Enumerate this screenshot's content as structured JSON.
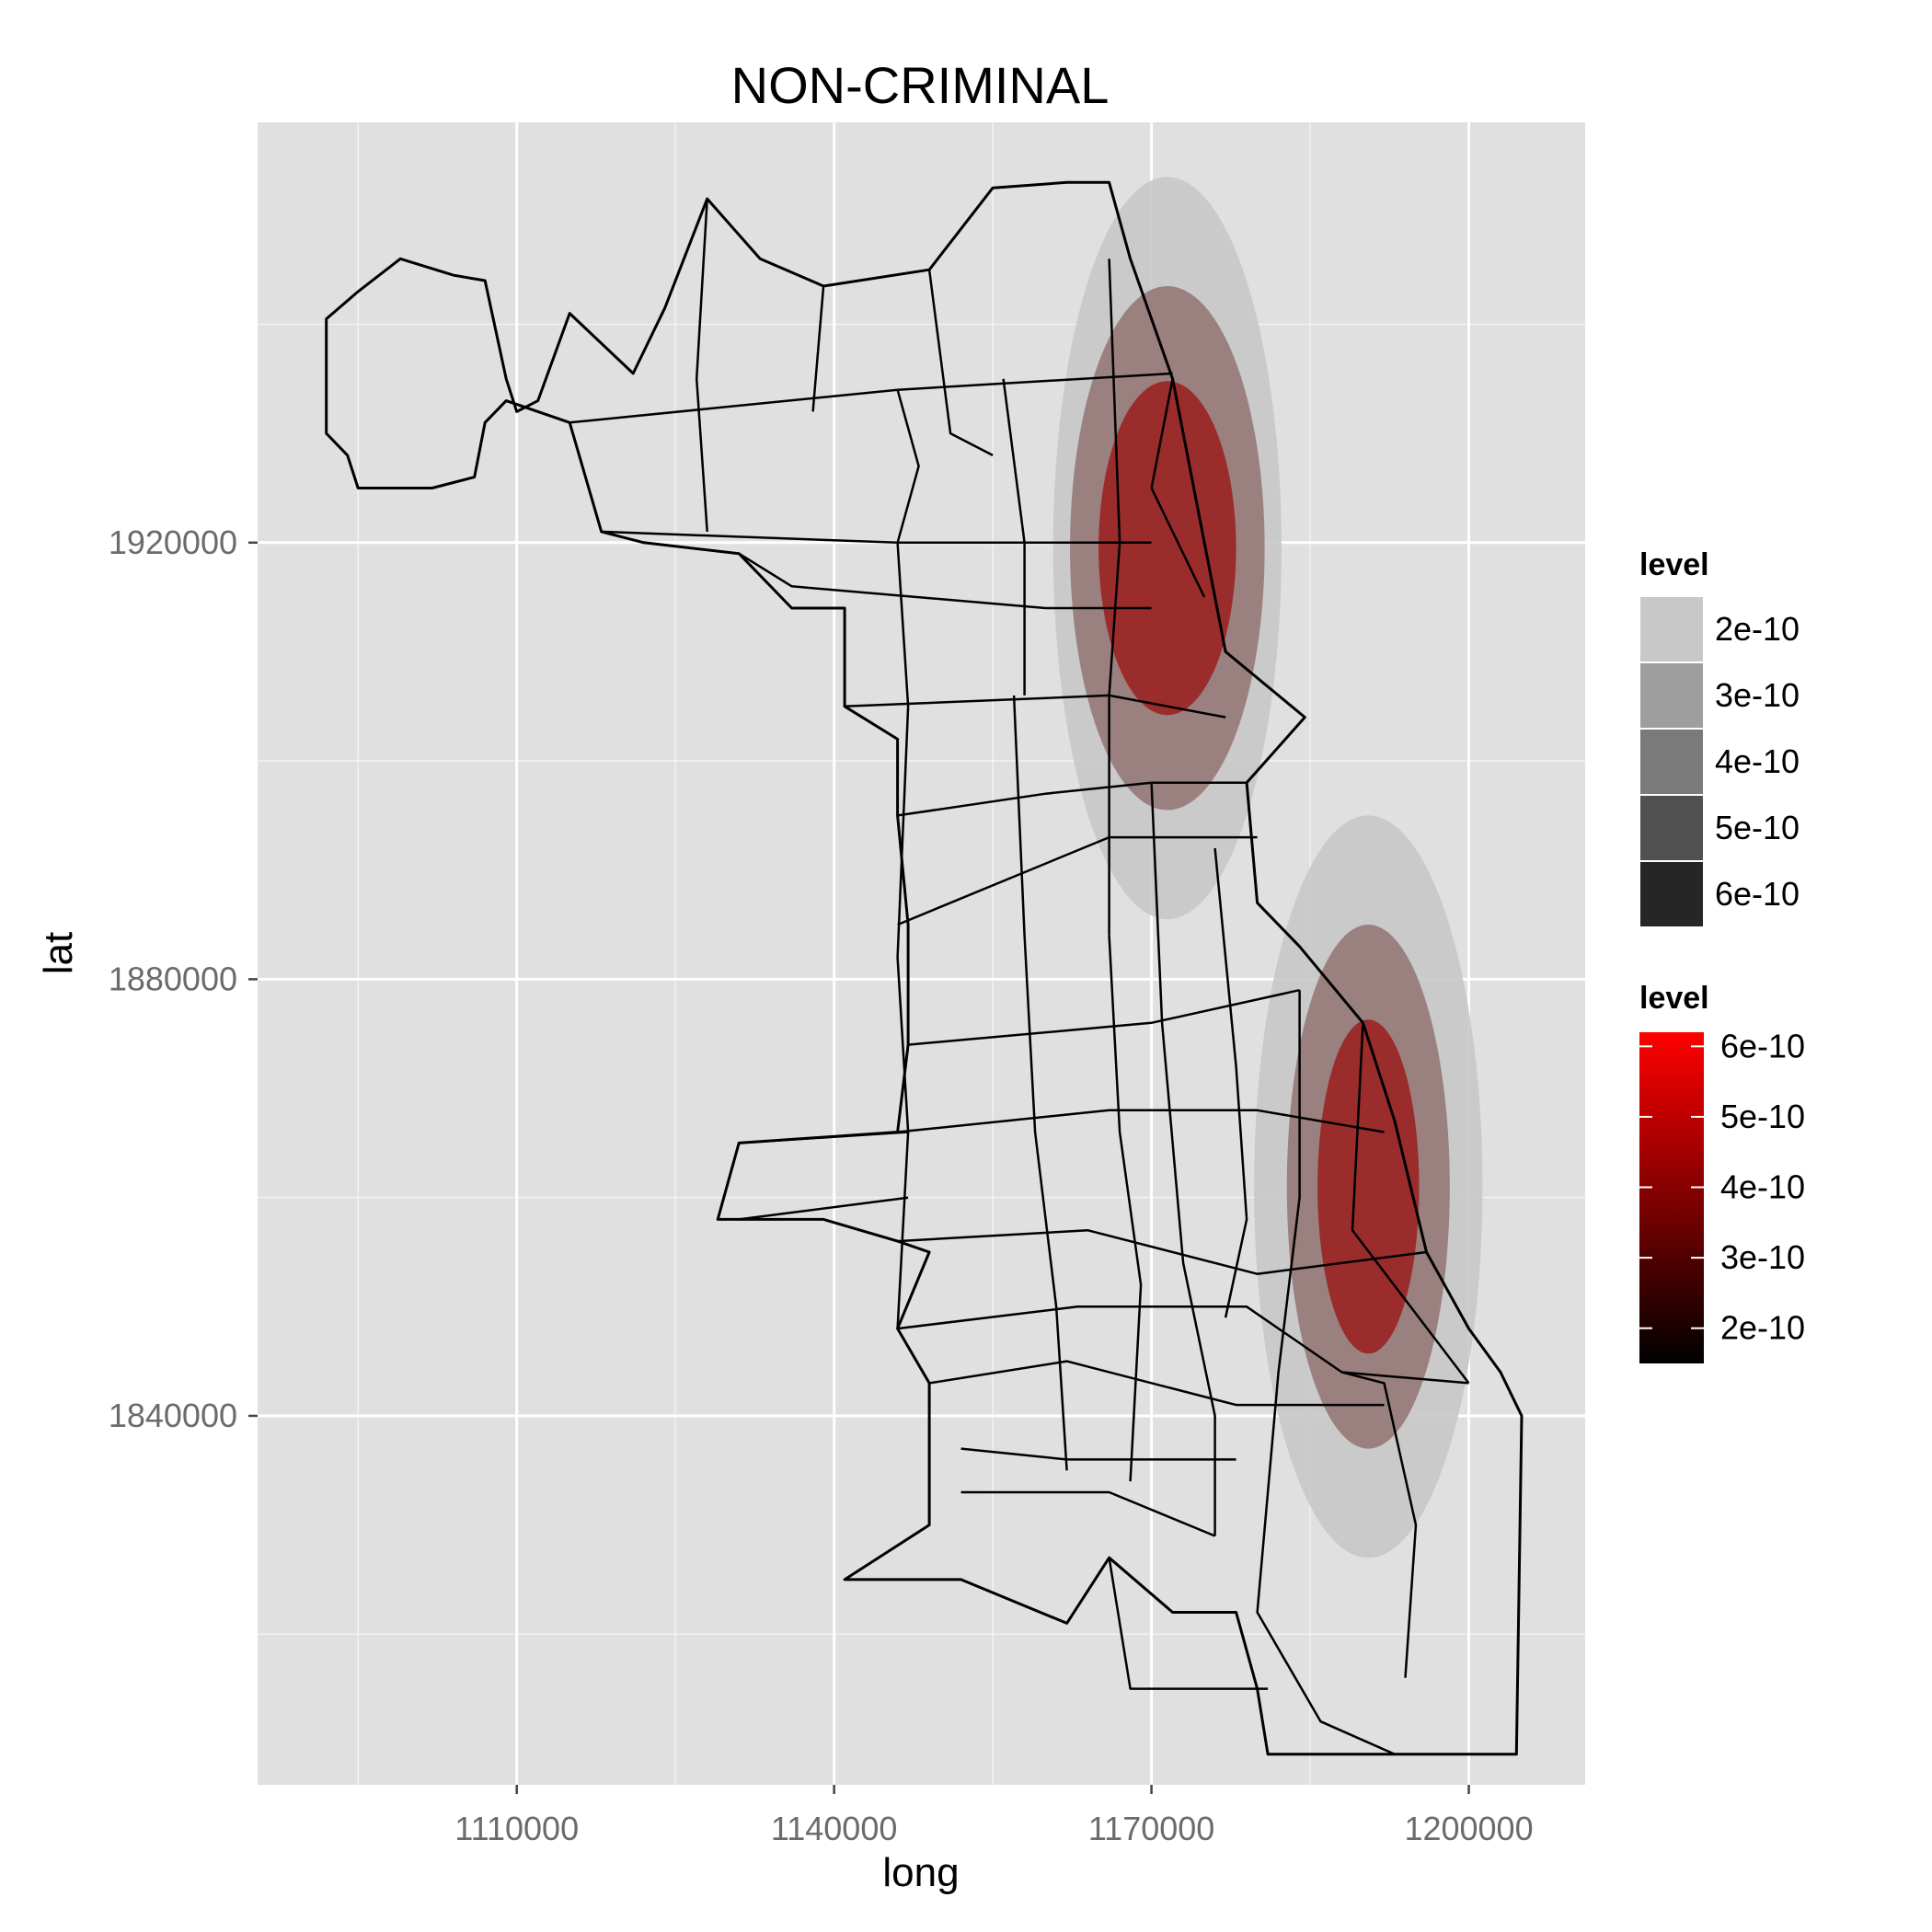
{
  "chart_data": {
    "type": "heatmap",
    "title": "NON-CRIMINAL",
    "xlabel": "long",
    "ylabel": "lat",
    "x_ticks": [
      1110000,
      1140000,
      1170000,
      1200000
    ],
    "y_ticks": [
      1840000,
      1880000,
      1920000
    ],
    "x_tick_labels": [
      "1110000",
      "1140000",
      "1170000",
      "1200000"
    ],
    "y_tick_labels": [
      "1840000",
      "1880000",
      "1920000"
    ],
    "xlim": [
      1085500,
      1211000
    ],
    "ylim": [
      1806200,
      1958500
    ],
    "grid": true,
    "panel_background": "#E0E0E0",
    "grid_color": "#FFFFFF",
    "legend_placement": "right",
    "legends": [
      {
        "title": "level",
        "kind": "fill",
        "entries": [
          {
            "label": "2e-10",
            "color": "#C8C8C8"
          },
          {
            "label": "3e-10",
            "color": "#9E9E9E"
          },
          {
            "label": "4e-10",
            "color": "#7A7A7A"
          },
          {
            "label": "5e-10",
            "color": "#505050"
          },
          {
            "label": "6e-10",
            "color": "#262626"
          }
        ]
      },
      {
        "title": "level",
        "kind": "colour",
        "gradient": [
          "#000000",
          "#FF0000"
        ],
        "range": [
          1.5e-10,
          6.2e-10
        ],
        "entries": [
          {
            "label": "2e-10",
            "value": 2e-10
          },
          {
            "label": "3e-10",
            "value": 3e-10
          },
          {
            "label": "4e-10",
            "value": 4e-10
          },
          {
            "label": "5e-10",
            "value": 5e-10
          },
          {
            "label": "6e-10",
            "value": 6e-10
          }
        ]
      }
    ],
    "density_hotspots": [
      {
        "center": [
          1171500,
          1919500
        ],
        "contours": [
          {
            "level": 2e-10,
            "rx": 10800,
            "ry": 34000,
            "fill": "#C8C8C8",
            "opacity": 0.9
          },
          {
            "level": 3e-10,
            "rx": 9200,
            "ry": 24000,
            "fill": "#967878",
            "opacity": 0.9
          },
          {
            "level": 4e-10,
            "rx": 6500,
            "ry": 15300,
            "fill": "#9A2222",
            "opacity": 0.9
          }
        ]
      },
      {
        "center": [
          1190500,
          1861000
        ],
        "contours": [
          {
            "level": 2e-10,
            "rx": 10800,
            "ry": 34000,
            "fill": "#C8C8C8",
            "opacity": 0.9
          },
          {
            "level": 3e-10,
            "rx": 7700,
            "ry": 24000,
            "fill": "#967878",
            "opacity": 0.9
          },
          {
            "level": 4e-10,
            "rx": 4800,
            "ry": 15300,
            "fill": "#9A2222",
            "opacity": 0.9
          }
        ]
      }
    ],
    "boundary_outline": [
      [
        1092000,
        1940500
      ],
      [
        1095000,
        1943000
      ],
      [
        1099000,
        1946000
      ],
      [
        1104000,
        1944500
      ],
      [
        1107000,
        1944000
      ],
      [
        1109000,
        1935000
      ],
      [
        1110000,
        1932000
      ],
      [
        1112000,
        1933000
      ],
      [
        1115000,
        1941000
      ],
      [
        1121000,
        1935500
      ],
      [
        1124000,
        1941500
      ],
      [
        1128000,
        1951500
      ],
      [
        1133000,
        1946000
      ],
      [
        1139000,
        1943500
      ],
      [
        1149000,
        1945000
      ],
      [
        1155000,
        1952500
      ],
      [
        1162000,
        1953000
      ],
      [
        1166000,
        1953000
      ],
      [
        1168000,
        1946000
      ],
      [
        1172000,
        1935000
      ],
      [
        1177000,
        1910000
      ],
      [
        1184500,
        1904000
      ],
      [
        1179000,
        1898000
      ],
      [
        1180000,
        1887000
      ],
      [
        1184000,
        1883000
      ],
      [
        1190000,
        1876000
      ],
      [
        1193000,
        1867000
      ],
      [
        1196000,
        1855000
      ],
      [
        1200000,
        1848000
      ],
      [
        1203000,
        1844000
      ],
      [
        1205000,
        1840000
      ],
      [
        1204500,
        1809000
      ],
      [
        1181000,
        1809000
      ],
      [
        1180000,
        1815000
      ],
      [
        1178000,
        1822000
      ],
      [
        1172000,
        1822000
      ],
      [
        1166000,
        1827000
      ],
      [
        1162000,
        1821000
      ],
      [
        1152000,
        1825000
      ],
      [
        1141000,
        1825000
      ],
      [
        1149000,
        1830000
      ],
      [
        1149000,
        1843000
      ],
      [
        1146000,
        1848000
      ],
      [
        1149000,
        1855000
      ],
      [
        1146000,
        1856000
      ],
      [
        1139000,
        1858000
      ],
      [
        1129000,
        1858000
      ],
      [
        1131000,
        1865000
      ],
      [
        1146000,
        1866000
      ],
      [
        1147000,
        1874000
      ],
      [
        1147000,
        1885000
      ],
      [
        1146000,
        1895000
      ],
      [
        1146000,
        1902000
      ],
      [
        1141000,
        1905000
      ],
      [
        1141000,
        1914000
      ],
      [
        1136000,
        1914000
      ],
      [
        1131000,
        1919000
      ],
      [
        1122000,
        1920000
      ],
      [
        1118000,
        1921000
      ],
      [
        1115000,
        1931000
      ],
      [
        1109000,
        1933000
      ],
      [
        1107000,
        1931000
      ],
      [
        1106000,
        1926000
      ],
      [
        1102000,
        1925000
      ],
      [
        1095000,
        1925000
      ],
      [
        1094000,
        1928000
      ],
      [
        1092000,
        1930000
      ],
      [
        1092000,
        1940500
      ]
    ],
    "interior_lines": [
      [
        [
          1115000,
          1931000
        ],
        [
          1146000,
          1934000
        ],
        [
          1172000,
          1935500
        ]
      ],
      [
        [
          1118000,
          1921000
        ],
        [
          1146000,
          1920000
        ],
        [
          1170000,
          1920000
        ]
      ],
      [
        [
          1131000,
          1919000
        ],
        [
          1136000,
          1916000
        ],
        [
          1160000,
          1914000
        ],
        [
          1170000,
          1914000
        ]
      ],
      [
        [
          1141000,
          1905000
        ],
        [
          1166000,
          1906000
        ],
        [
          1177000,
          1904000
        ]
      ],
      [
        [
          1146000,
          1895000
        ],
        [
          1160000,
          1897000
        ],
        [
          1170000,
          1898000
        ],
        [
          1179000,
          1898000
        ]
      ],
      [
        [
          1146000,
          1885000
        ],
        [
          1166000,
          1893000
        ],
        [
          1180000,
          1893000
        ]
      ],
      [
        [
          1147000,
          1874000
        ],
        [
          1170000,
          1876000
        ],
        [
          1184000,
          1879000
        ]
      ],
      [
        [
          1146000,
          1866000
        ],
        [
          1166000,
          1868000
        ],
        [
          1180000,
          1868000
        ],
        [
          1192000,
          1866000
        ]
      ],
      [
        [
          1131000,
          1865000
        ],
        [
          1147000,
          1866000
        ]
      ],
      [
        [
          1146000,
          1856000
        ],
        [
          1164000,
          1857000
        ],
        [
          1180000,
          1853000
        ],
        [
          1196000,
          1855000
        ]
      ],
      [
        [
          1146000,
          1848000
        ],
        [
          1163000,
          1850000
        ],
        [
          1179000,
          1850000
        ],
        [
          1188000,
          1844000
        ],
        [
          1200000,
          1843000
        ]
      ],
      [
        [
          1149000,
          1843000
        ],
        [
          1162000,
          1845000
        ],
        [
          1178000,
          1841000
        ],
        [
          1192000,
          1841000
        ]
      ],
      [
        [
          1152000,
          1837000
        ],
        [
          1162000,
          1836000
        ],
        [
          1178000,
          1836000
        ]
      ],
      [
        [
          1152000,
          1833000
        ],
        [
          1166000,
          1833000
        ],
        [
          1176000,
          1829000
        ]
      ],
      [
        [
          1146000,
          1934000
        ],
        [
          1148000,
          1927000
        ],
        [
          1146000,
          1920000
        ]
      ],
      [
        [
          1156000,
          1935000
        ],
        [
          1158000,
          1920000
        ],
        [
          1158000,
          1906000
        ]
      ],
      [
        [
          1166000,
          1946000
        ],
        [
          1167000,
          1920000
        ],
        [
          1166000,
          1906000
        ],
        [
          1166000,
          1884000
        ]
      ],
      [
        [
          1146000,
          1920000
        ],
        [
          1147000,
          1905000
        ],
        [
          1146000,
          1882000
        ],
        [
          1147000,
          1866000
        ],
        [
          1146000,
          1848000
        ]
      ],
      [
        [
          1157000,
          1906000
        ],
        [
          1158000,
          1884000
        ],
        [
          1159000,
          1866000
        ],
        [
          1161000,
          1850000
        ],
        [
          1162000,
          1835000
        ]
      ],
      [
        [
          1166000,
          1884000
        ],
        [
          1167000,
          1866000
        ],
        [
          1169000,
          1852000
        ],
        [
          1168000,
          1834000
        ]
      ],
      [
        [
          1170000,
          1898000
        ],
        [
          1171000,
          1876000
        ],
        [
          1173000,
          1854000
        ],
        [
          1176000,
          1840000
        ],
        [
          1176000,
          1829000
        ]
      ],
      [
        [
          1176000,
          1892000
        ],
        [
          1178000,
          1872000
        ],
        [
          1179000,
          1858000
        ],
        [
          1177000,
          1849000
        ]
      ],
      [
        [
          1184000,
          1879000
        ],
        [
          1184000,
          1860000
        ],
        [
          1182000,
          1844000
        ],
        [
          1180000,
          1822000
        ],
        [
          1186000,
          1812000
        ],
        [
          1193000,
          1809000
        ]
      ],
      [
        [
          1188000,
          1844000
        ],
        [
          1192000,
          1843000
        ],
        [
          1195000,
          1830000
        ],
        [
          1194000,
          1816000
        ]
      ],
      [
        [
          1190000,
          1876000
        ],
        [
          1189000,
          1857000
        ],
        [
          1200000,
          1843000
        ]
      ],
      [
        [
          1131000,
          1858000
        ],
        [
          1147000,
          1860000
        ]
      ],
      [
        [
          1166000,
          1827000
        ],
        [
          1168000,
          1815000
        ],
        [
          1181000,
          1815000
        ]
      ],
      [
        [
          1128000,
          1951500
        ],
        [
          1127000,
          1935000
        ],
        [
          1128000,
          1921000
        ]
      ],
      [
        [
          1139000,
          1943500
        ],
        [
          1138000,
          1932000
        ]
      ],
      [
        [
          1149000,
          1945000
        ],
        [
          1151000,
          1930000
        ],
        [
          1155000,
          1928000
        ]
      ],
      [
        [
          1172000,
          1935000
        ],
        [
          1170000,
          1925000
        ],
        [
          1175000,
          1915000
        ]
      ]
    ]
  }
}
